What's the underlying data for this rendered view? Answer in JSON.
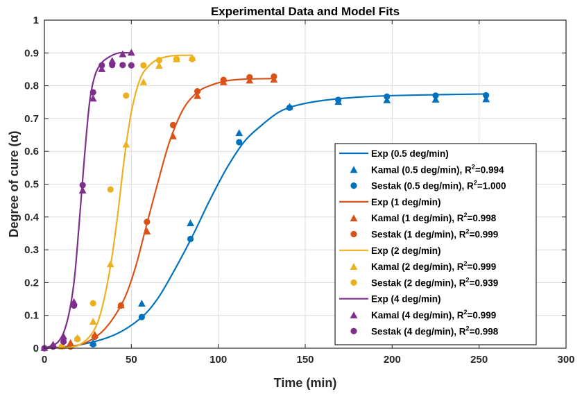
{
  "chart_data": {
    "type": "scatter",
    "title": "Experimental Data and Model Fits",
    "xlabel": "Time (min)",
    "ylabel": "Degree of cure (α)",
    "xlim": [
      0,
      300
    ],
    "ylim": [
      0,
      1
    ],
    "xticks": [
      "0",
      "50",
      "100",
      "150",
      "200",
      "250",
      "300"
    ],
    "yticks": [
      "0",
      "0.1",
      "0.2",
      "0.3",
      "0.4",
      "0.5",
      "0.6",
      "0.7",
      "0.8",
      "0.9",
      "1"
    ],
    "grid": true,
    "legend_position": "lower-right",
    "series": [
      {
        "name": "Exp (0.5 deg/min)",
        "kind": "line",
        "color": "#0072BD",
        "x": [
          0,
          20,
          40,
          55,
          65,
          75,
          85,
          95,
          105,
          115,
          125,
          135,
          145,
          160,
          180,
          200,
          230,
          255
        ],
        "y": [
          0.0,
          0.01,
          0.04,
          0.09,
          0.15,
          0.24,
          0.34,
          0.45,
          0.55,
          0.63,
          0.68,
          0.72,
          0.74,
          0.755,
          0.765,
          0.77,
          0.773,
          0.775
        ]
      },
      {
        "name": "Kamal (0.5 deg/min)",
        "legend_prefix": "Kamal (0.5 deg/min), R",
        "legend_suffix": "=0.994",
        "kind": "triangle",
        "color": "#0072BD",
        "x": [
          28,
          56,
          84,
          112,
          141,
          169,
          197,
          225,
          254
        ],
        "y": [
          0.015,
          0.135,
          0.38,
          0.655,
          0.735,
          0.75,
          0.755,
          0.757,
          0.758
        ]
      },
      {
        "name": "Sestak (0.5 deg/min)",
        "legend_prefix": "Sestak (0.5 deg/min), R",
        "legend_suffix": "=1.000",
        "kind": "circle",
        "color": "#0072BD",
        "x": [
          28,
          56,
          84,
          112,
          141,
          169,
          197,
          225,
          254
        ],
        "y": [
          0.012,
          0.095,
          0.333,
          0.628,
          0.733,
          0.757,
          0.767,
          0.77,
          0.771
        ]
      },
      {
        "name": "Exp (1 deg/min)",
        "kind": "line",
        "color": "#D95319",
        "x": [
          0,
          15,
          25,
          35,
          45,
          52,
          58,
          65,
          72,
          80,
          88,
          95,
          105,
          115,
          133
        ],
        "y": [
          0.0,
          0.005,
          0.02,
          0.06,
          0.14,
          0.24,
          0.36,
          0.5,
          0.63,
          0.73,
          0.78,
          0.8,
          0.815,
          0.82,
          0.822
        ]
      },
      {
        "name": "Kamal (1 deg/min)",
        "legend_prefix": "Kamal (1 deg/min), R",
        "legend_suffix": "=0.998",
        "kind": "triangle",
        "color": "#D95319",
        "x": [
          15,
          29,
          44,
          59,
          74,
          88,
          103,
          118,
          132
        ],
        "y": [
          0.015,
          0.04,
          0.13,
          0.355,
          0.645,
          0.768,
          0.81,
          0.815,
          0.818
        ]
      },
      {
        "name": "Sestak (1 deg/min)",
        "legend_prefix": "Sestak (1 deg/min), R",
        "legend_suffix": "=0.999",
        "kind": "circle",
        "color": "#D95319",
        "x": [
          15,
          29,
          44,
          59,
          74,
          88,
          103,
          118,
          132
        ],
        "y": [
          0.005,
          0.035,
          0.13,
          0.385,
          0.68,
          0.783,
          0.818,
          0.826,
          0.828
        ]
      },
      {
        "name": "Exp (2 deg/min)",
        "kind": "line",
        "color": "#EDB120",
        "x": [
          10,
          20,
          28,
          33,
          38,
          42,
          46,
          50,
          55,
          60,
          65,
          70,
          75,
          85
        ],
        "y": [
          0.0,
          0.01,
          0.05,
          0.12,
          0.25,
          0.4,
          0.58,
          0.72,
          0.82,
          0.86,
          0.88,
          0.888,
          0.892,
          0.893
        ]
      },
      {
        "name": "Kamal (2 deg/min)",
        "legend_prefix": "Kamal (2 deg/min), R",
        "legend_suffix": "=0.999",
        "kind": "triangle",
        "color": "#EDB120",
        "x": [
          10,
          19,
          28,
          38,
          47,
          57,
          66,
          76,
          85
        ],
        "y": [
          0.005,
          0.03,
          0.08,
          0.255,
          0.62,
          0.81,
          0.86,
          0.88,
          0.884
        ]
      },
      {
        "name": "Sestak (2 deg/min)",
        "legend_prefix": "Sestak (2 deg/min), R",
        "legend_suffix": "=0.939",
        "kind": "circle",
        "color": "#EDB120",
        "x": [
          10,
          19,
          28,
          38,
          47,
          57,
          66,
          76,
          85
        ],
        "y": [
          0.005,
          0.028,
          0.137,
          0.484,
          0.77,
          0.862,
          0.878,
          0.881,
          0.881
        ]
      },
      {
        "name": "Exp (4 deg/min)",
        "kind": "line",
        "color": "#7E2F8E",
        "x": [
          0,
          8,
          13,
          17,
          20,
          23,
          26,
          29,
          33,
          38,
          43,
          50
        ],
        "y": [
          0.0,
          0.02,
          0.08,
          0.2,
          0.38,
          0.58,
          0.75,
          0.83,
          0.87,
          0.89,
          0.9,
          0.9
        ]
      },
      {
        "name": "Kamal (4 deg/min)",
        "legend_prefix": "Kamal (4 deg/min), R",
        "legend_suffix": "=0.999",
        "kind": "triangle",
        "color": "#7E2F8E",
        "x": [
          0,
          5,
          11,
          17,
          22,
          28,
          33,
          39,
          45,
          50
        ],
        "y": [
          0.0,
          0.01,
          0.035,
          0.14,
          0.48,
          0.76,
          0.85,
          0.875,
          0.895,
          0.9
        ]
      },
      {
        "name": "Sestak (4 deg/min)",
        "legend_prefix": "Sestak (4 deg/min), R",
        "legend_suffix": "=0.998",
        "kind": "circle",
        "color": "#7E2F8E",
        "x": [
          0,
          5,
          11,
          17,
          22,
          28,
          33,
          39,
          45,
          50
        ],
        "y": [
          0.0,
          0.005,
          0.02,
          0.13,
          0.497,
          0.78,
          0.862,
          0.863,
          0.863,
          0.862
        ]
      }
    ]
  }
}
